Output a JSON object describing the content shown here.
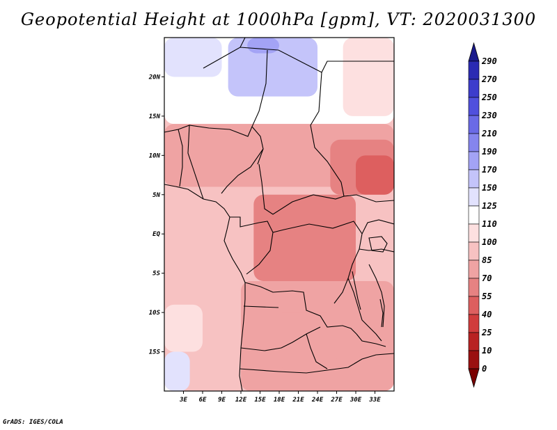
{
  "title": "Geopotential Height at 1000hPa [gpm], VT: 2020031300",
  "credit": "GrADS: IGES/COLA",
  "chart_data": {
    "type": "heatmap",
    "title": "Geopotential Height at 1000hPa [gpm], VT: 2020031300",
    "variable": "Geopotential Height",
    "level": "1000hPa",
    "units": "gpm",
    "valid_time": "2020031300",
    "lon_range": [
      0,
      36
    ],
    "lat_range": [
      -20,
      25
    ],
    "x_ticks": [
      {
        "value": 3,
        "label": "3E"
      },
      {
        "value": 6,
        "label": "6E"
      },
      {
        "value": 9,
        "label": "9E"
      },
      {
        "value": 12,
        "label": "12E"
      },
      {
        "value": 15,
        "label": "15E"
      },
      {
        "value": 18,
        "label": "18E"
      },
      {
        "value": 21,
        "label": "21E"
      },
      {
        "value": 24,
        "label": "24E"
      },
      {
        "value": 27,
        "label": "27E"
      },
      {
        "value": 30,
        "label": "30E"
      },
      {
        "value": 33,
        "label": "33E"
      }
    ],
    "y_ticks": [
      {
        "value": 20,
        "label": "20N"
      },
      {
        "value": 15,
        "label": "15N"
      },
      {
        "value": 10,
        "label": "10N"
      },
      {
        "value": 5,
        "label": "5N"
      },
      {
        "value": 0,
        "label": "EQ"
      },
      {
        "value": -5,
        "label": "5S"
      },
      {
        "value": -10,
        "label": "10S"
      },
      {
        "value": -15,
        "label": "15S"
      }
    ],
    "colorbar": {
      "levels": [
        290,
        270,
        250,
        230,
        210,
        190,
        170,
        150,
        125,
        110,
        100,
        85,
        70,
        55,
        40,
        25,
        10,
        0
      ],
      "colors": [
        "#1a1a8c",
        "#2b2bb3",
        "#3d3dcc",
        "#5050dd",
        "#6a6ae6",
        "#8585ee",
        "#a3a3f5",
        "#c4c4fa",
        "#e2e2fd",
        "#ffffff",
        "#fde0e0",
        "#f7c2c2",
        "#efa3a3",
        "#e68282",
        "#dd5f5f",
        "#d03c3c",
        "#b82222",
        "#9a1010",
        "#7a0000"
      ]
    },
    "regions": [
      {
        "lon": [
          0,
          36
        ],
        "lat": [
          -20,
          25
        ],
        "value": 92
      },
      {
        "lon": [
          0,
          36
        ],
        "lat": [
          14,
          25
        ],
        "value": 118
      },
      {
        "lon": [
          0,
          9
        ],
        "lat": [
          20,
          25
        ],
        "value": 135
      },
      {
        "lon": [
          10,
          24
        ],
        "lat": [
          17.5,
          25
        ],
        "value": 158
      },
      {
        "lon": [
          13,
          18
        ],
        "lat": [
          23,
          25
        ],
        "value": 175
      },
      {
        "lon": [
          28,
          36
        ],
        "lat": [
          15,
          25
        ],
        "value": 100
      },
      {
        "lon": [
          0,
          36
        ],
        "lat": [
          6,
          14
        ],
        "value": 78
      },
      {
        "lon": [
          26,
          36
        ],
        "lat": [
          5,
          12
        ],
        "value": 55
      },
      {
        "lon": [
          30,
          36
        ],
        "lat": [
          5,
          10
        ],
        "value": 44
      },
      {
        "lon": [
          14,
          30
        ],
        "lat": [
          -6,
          5
        ],
        "value": 68
      },
      {
        "lon": [
          12,
          36
        ],
        "lat": [
          -20,
          -6
        ],
        "value": 78
      },
      {
        "lon": [
          17,
          27
        ],
        "lat": [
          -17,
          -10
        ],
        "value": 72
      },
      {
        "lon": [
          0,
          11
        ],
        "lat": [
          -20,
          5
        ],
        "value": 95
      },
      {
        "lon": [
          0,
          4
        ],
        "lat": [
          -20,
          -15
        ],
        "value": 130
      },
      {
        "lon": [
          0,
          6
        ],
        "lat": [
          -15,
          -9
        ],
        "value": 104
      }
    ]
  }
}
